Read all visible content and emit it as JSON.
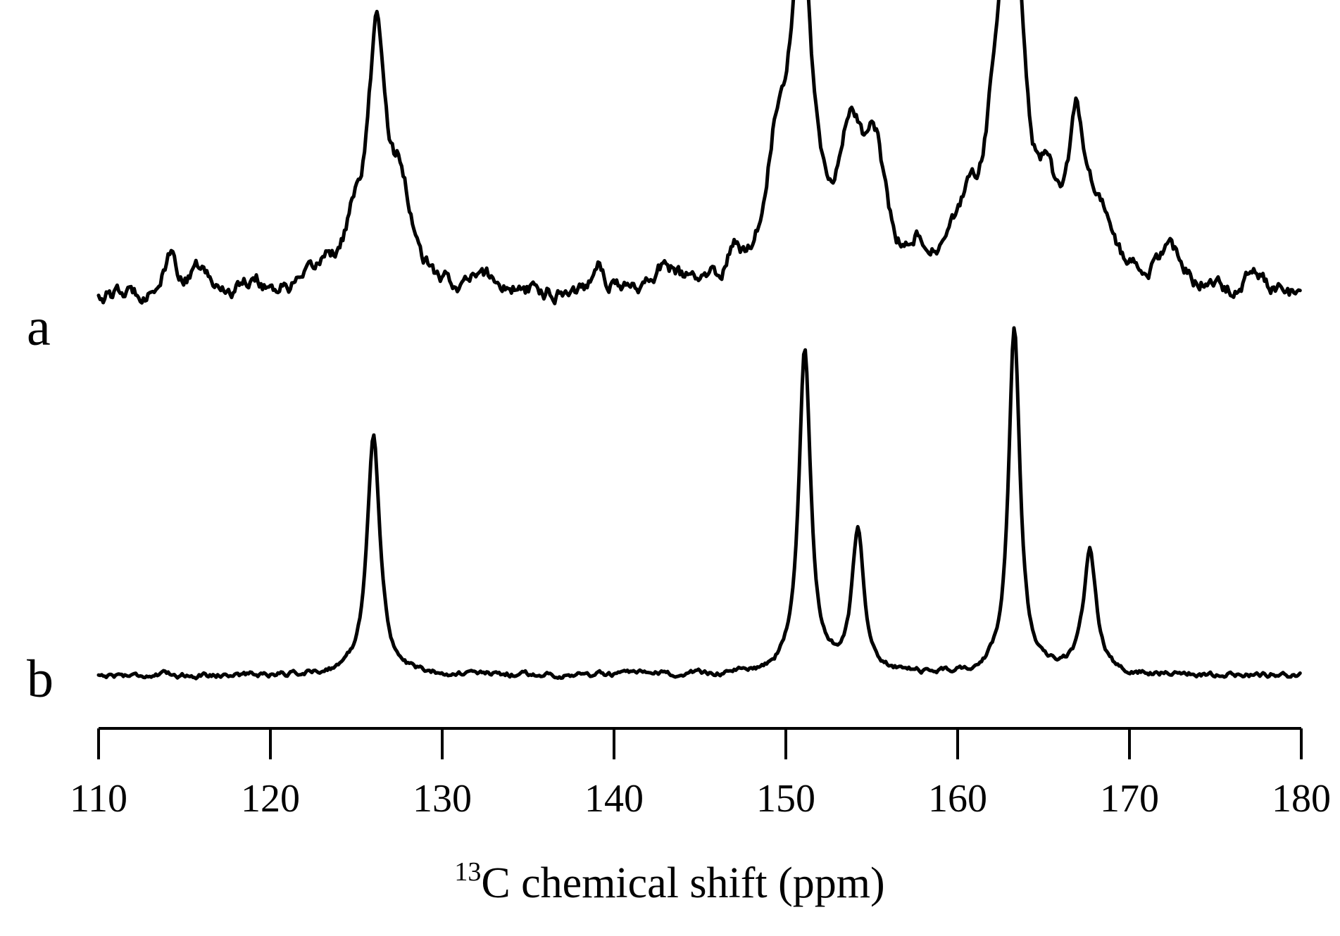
{
  "chart_data": {
    "type": "line",
    "xlabel_sup": "13",
    "xlabel": "C chemical shift (ppm)",
    "xlim": [
      110,
      180
    ],
    "ylim": [
      0,
      1
    ],
    "xticks": [
      "110",
      "120",
      "130",
      "140",
      "150",
      "160",
      "170",
      "180"
    ],
    "grid": false,
    "legend": "none",
    "series": [
      {
        "name": "a",
        "baseline": 0.06,
        "noise": 0.035,
        "peaks": [
          {
            "center": 114.2,
            "height": 0.09,
            "width": 0.5
          },
          {
            "center": 115.9,
            "height": 0.06,
            "width": 0.5
          },
          {
            "center": 119.0,
            "height": 0.04,
            "width": 0.6
          },
          {
            "center": 123.2,
            "height": 0.06,
            "width": 0.7
          },
          {
            "center": 124.8,
            "height": 0.11,
            "width": 0.6
          },
          {
            "center": 126.2,
            "height": 0.64,
            "width": 0.65
          },
          {
            "center": 127.6,
            "height": 0.22,
            "width": 0.7
          },
          {
            "center": 132.5,
            "height": 0.04,
            "width": 0.8
          },
          {
            "center": 139.1,
            "height": 0.08,
            "width": 0.4
          },
          {
            "center": 143.0,
            "height": 0.06,
            "width": 0.8
          },
          {
            "center": 147.0,
            "height": 0.07,
            "width": 0.4
          },
          {
            "center": 149.5,
            "height": 0.28,
            "width": 0.8
          },
          {
            "center": 150.9,
            "height": 0.85,
            "width": 0.75
          },
          {
            "center": 153.8,
            "height": 0.34,
            "width": 0.9
          },
          {
            "center": 155.2,
            "height": 0.28,
            "width": 0.7
          },
          {
            "center": 157.7,
            "height": 0.06,
            "width": 0.4
          },
          {
            "center": 160.5,
            "height": 0.13,
            "width": 1.0
          },
          {
            "center": 162.5,
            "height": 0.45,
            "width": 0.9
          },
          {
            "center": 163.3,
            "height": 0.72,
            "width": 0.7
          },
          {
            "center": 165.2,
            "height": 0.17,
            "width": 0.6
          },
          {
            "center": 166.9,
            "height": 0.35,
            "width": 0.55
          },
          {
            "center": 168.2,
            "height": 0.17,
            "width": 1.0
          },
          {
            "center": 172.3,
            "height": 0.09,
            "width": 0.9
          },
          {
            "center": 177.3,
            "height": 0.06,
            "width": 0.6
          }
        ]
      },
      {
        "name": "b",
        "baseline": 0.015,
        "noise": 0.012,
        "peaks": [
          {
            "center": 126.0,
            "height": 0.61,
            "width": 0.45
          },
          {
            "center": 151.1,
            "height": 0.83,
            "width": 0.42
          },
          {
            "center": 154.2,
            "height": 0.36,
            "width": 0.42
          },
          {
            "center": 163.3,
            "height": 0.88,
            "width": 0.4
          },
          {
            "center": 167.7,
            "height": 0.31,
            "width": 0.45
          }
        ]
      }
    ]
  }
}
